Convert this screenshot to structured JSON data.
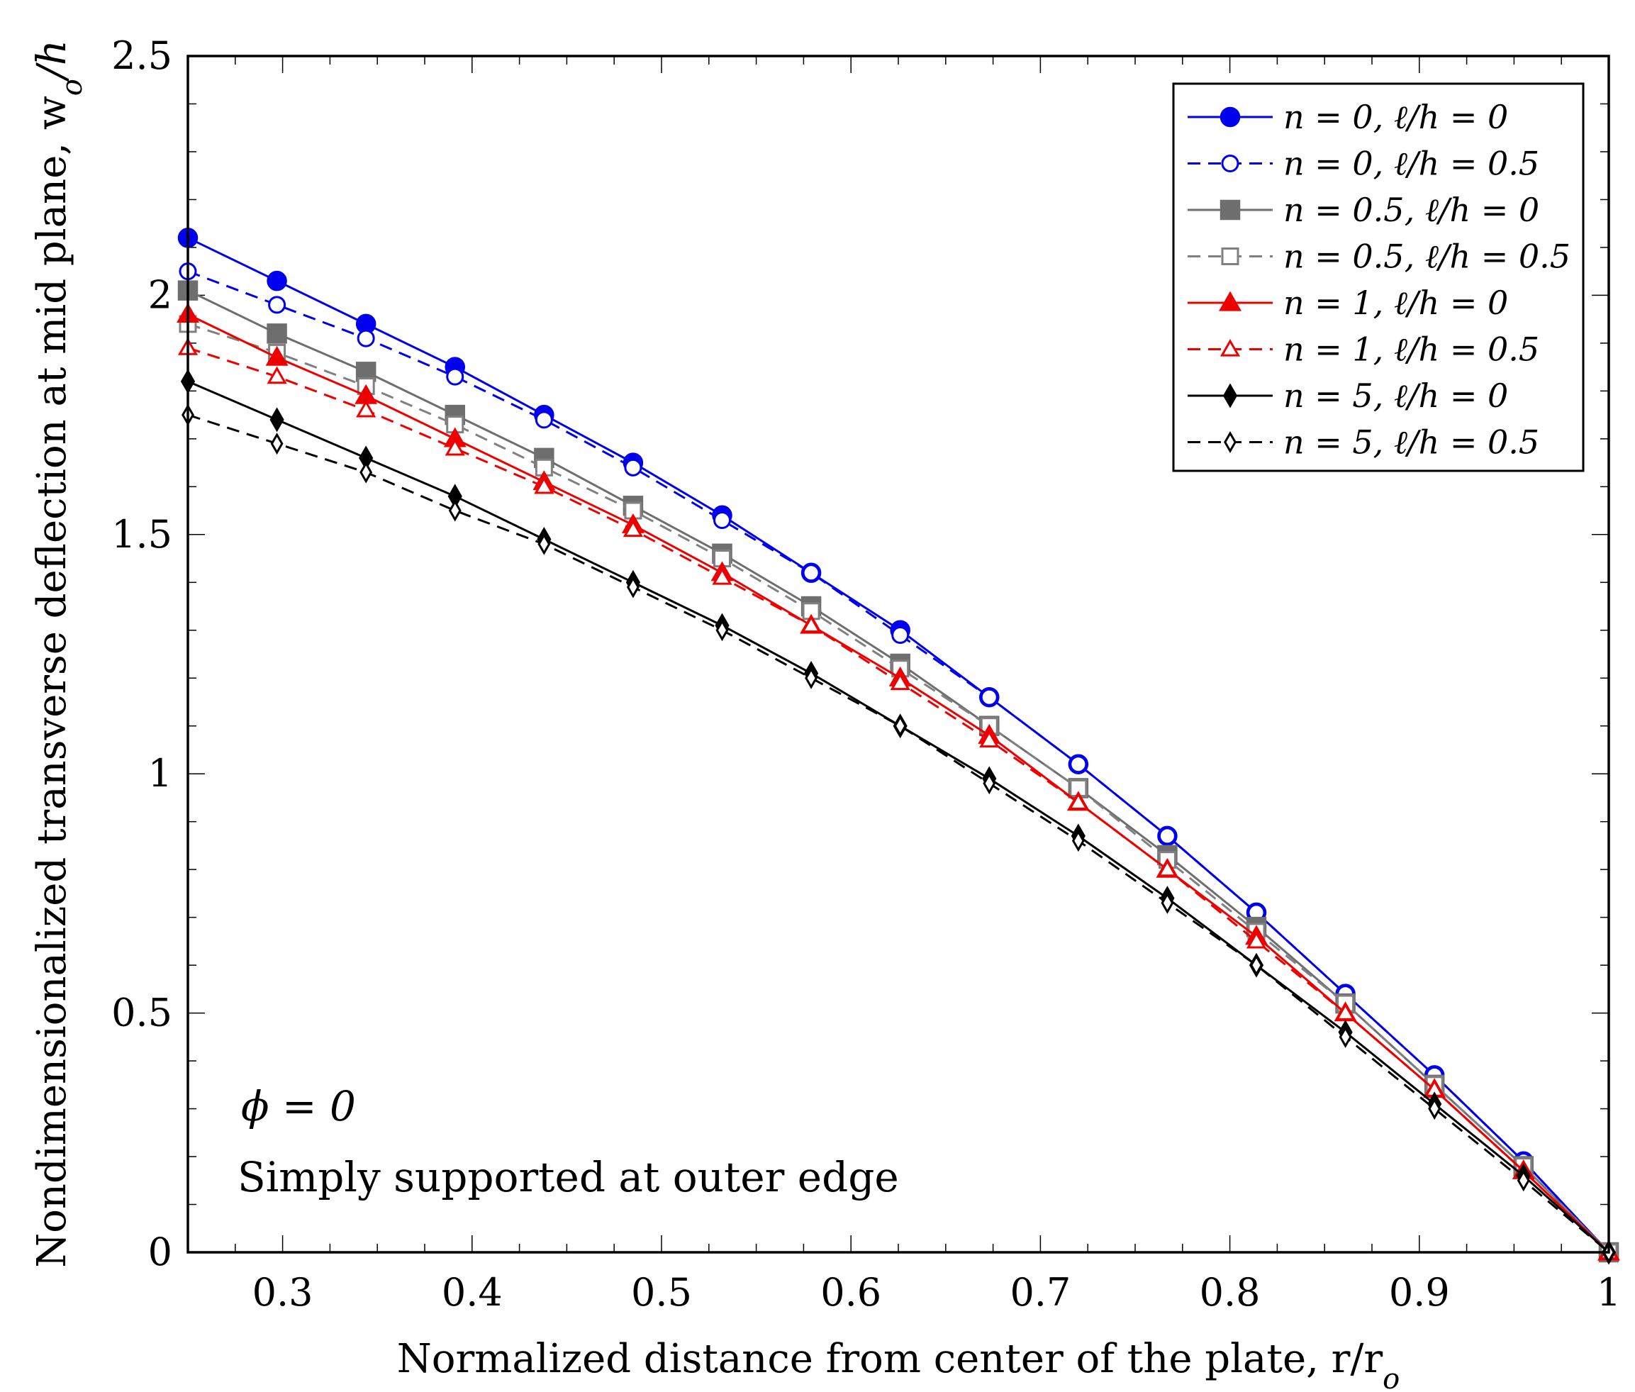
{
  "chart_data": {
    "type": "line",
    "xlabel": "Normalized distance from center of the plate, r/r",
    "xlabel_subscript": "o",
    "ylabel": "Nondimensionalized transverse deflection at mid plane, w",
    "ylabel_subscript": "o",
    "ylabel_suffix": "/h",
    "xlim": [
      0.25,
      1.0
    ],
    "ylim": [
      0,
      2.5
    ],
    "xticks": [
      0.3,
      0.4,
      0.5,
      0.6,
      0.7,
      0.8,
      0.9,
      1.0
    ],
    "xtick_labels": [
      "0.3",
      "0.4",
      "0.5",
      "0.6",
      "0.7",
      "0.8",
      "0.9",
      "1"
    ],
    "yticks": [
      0,
      0.5,
      1.0,
      1.5,
      2.0,
      2.5
    ],
    "ytick_labels": [
      "0",
      "0.5",
      "1",
      "1.5",
      "2",
      "2.5"
    ],
    "legend_position": "top-right",
    "annotations": [
      "ϕ = 0",
      "Simply supported at outer edge"
    ],
    "x": [
      0.25,
      0.297,
      0.344,
      0.391,
      0.438,
      0.485,
      0.532,
      0.579,
      0.626,
      0.673,
      0.72,
      0.767,
      0.814,
      0.861,
      0.908,
      0.955,
      1.0
    ],
    "series": [
      {
        "name": "n = 0,    ℓ/h = 0",
        "color": "#0000ee",
        "dashed": false,
        "marker": "circle",
        "filled": true,
        "values": [
          2.12,
          2.03,
          1.94,
          1.85,
          1.75,
          1.65,
          1.54,
          1.42,
          1.3,
          1.16,
          1.02,
          0.87,
          0.71,
          0.54,
          0.37,
          0.19,
          0.0
        ]
      },
      {
        "name": "n = 0,    ℓ/h = 0.5",
        "color": "#0000ee",
        "dashed": true,
        "marker": "circle",
        "filled": false,
        "values": [
          2.05,
          1.98,
          1.91,
          1.83,
          1.74,
          1.64,
          1.53,
          1.42,
          1.29,
          1.16,
          1.02,
          0.87,
          0.71,
          0.54,
          0.37,
          0.19,
          0.0
        ]
      },
      {
        "name": "n = 0.5, ℓ/h = 0",
        "color": "#6e6e6e",
        "dashed": false,
        "marker": "square",
        "filled": true,
        "values": [
          2.01,
          1.92,
          1.84,
          1.75,
          1.66,
          1.56,
          1.46,
          1.35,
          1.23,
          1.1,
          0.97,
          0.83,
          0.68,
          0.52,
          0.35,
          0.18,
          0.0
        ]
      },
      {
        "name": "n = 0.5, ℓ/h = 0.5",
        "color": "#808080",
        "dashed": true,
        "marker": "square",
        "filled": false,
        "values": [
          1.94,
          1.88,
          1.81,
          1.73,
          1.64,
          1.55,
          1.45,
          1.34,
          1.22,
          1.1,
          0.97,
          0.82,
          0.67,
          0.52,
          0.35,
          0.18,
          0.0
        ]
      },
      {
        "name": "n = 1,    ℓ/h = 0",
        "color": "#ee0000",
        "dashed": false,
        "marker": "triangle",
        "filled": true,
        "values": [
          1.96,
          1.87,
          1.79,
          1.7,
          1.61,
          1.52,
          1.42,
          1.31,
          1.2,
          1.08,
          0.94,
          0.8,
          0.66,
          0.5,
          0.34,
          0.17,
          0.0
        ]
      },
      {
        "name": "n = 1,    ℓ/h = 0.5",
        "color": "#ee0000",
        "dashed": true,
        "marker": "triangle",
        "filled": false,
        "values": [
          1.89,
          1.83,
          1.76,
          1.68,
          1.6,
          1.51,
          1.41,
          1.31,
          1.19,
          1.07,
          0.94,
          0.8,
          0.65,
          0.5,
          0.34,
          0.17,
          0.0
        ]
      },
      {
        "name": "n = 5,    ℓ/h = 0",
        "color": "#000000",
        "dashed": false,
        "marker": "diamond",
        "filled": true,
        "values": [
          1.82,
          1.74,
          1.66,
          1.58,
          1.49,
          1.4,
          1.31,
          1.21,
          1.1,
          0.99,
          0.87,
          0.74,
          0.6,
          0.46,
          0.31,
          0.16,
          0.0
        ]
      },
      {
        "name": "n = 5,    ℓ/h = 0.5",
        "color": "#000000",
        "dashed": true,
        "marker": "diamond",
        "filled": false,
        "values": [
          1.75,
          1.69,
          1.63,
          1.55,
          1.48,
          1.39,
          1.3,
          1.2,
          1.1,
          0.98,
          0.86,
          0.73,
          0.6,
          0.45,
          0.3,
          0.15,
          0.0
        ]
      }
    ]
  }
}
